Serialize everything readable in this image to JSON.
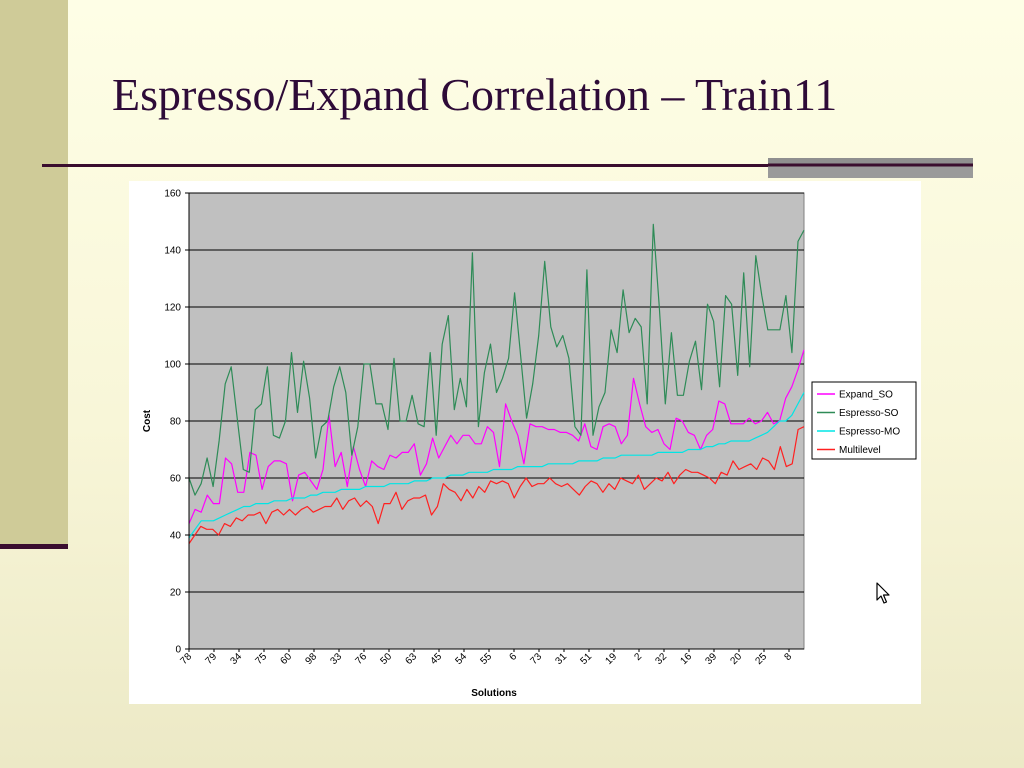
{
  "slide": {
    "title": "Espresso/Expand Correlation – Train11"
  },
  "colors": {
    "title": "#2e0b38",
    "band": "#cfcb98",
    "rule": "#3a0d2e",
    "plot_background": "#c0c0c0",
    "series": {
      "Expand_SO": "#ff00ff",
      "Espresso-SO": "#2e8b57",
      "Espresso-MO": "#00e5e5",
      "Multilevel": "#ff2020"
    }
  },
  "icons": {
    "cursor": "arrow-cursor-icon"
  },
  "chart_data": {
    "type": "line",
    "title": "",
    "xlabel": "Solutions",
    "ylabel": "Cost",
    "ylim": [
      0,
      160
    ],
    "yticks": [
      0,
      20,
      40,
      60,
      80,
      100,
      120,
      140,
      160
    ],
    "grid": true,
    "legend_position": "right",
    "x_tick_labels": [
      "78",
      "79",
      "34",
      "75",
      "60",
      "98",
      "33",
      "76",
      "50",
      "63",
      "45",
      "54",
      "55",
      "6",
      "73",
      "31",
      "51",
      "19",
      "2",
      "32",
      "16",
      "39",
      "20",
      "25",
      "8"
    ],
    "x_tick_every": 5,
    "n_points": 124,
    "series": [
      {
        "name": "Expand_SO",
        "color": "#ff00ff",
        "values": [
          44,
          49,
          48,
          54,
          51,
          51,
          67,
          65,
          55,
          55,
          69,
          68,
          56,
          64,
          66,
          66,
          65,
          52,
          61,
          62,
          59,
          56,
          63,
          82,
          64,
          69,
          57,
          71,
          63,
          57,
          66,
          64,
          63,
          68,
          67,
          69,
          69,
          72,
          61,
          65,
          74,
          67,
          71,
          75,
          72,
          75,
          75,
          72,
          72,
          78,
          76,
          64,
          86,
          80,
          75,
          65,
          79,
          78,
          78,
          77,
          77,
          76,
          76,
          75,
          73,
          79,
          71,
          70,
          78,
          79,
          78,
          72,
          75,
          95,
          86,
          78,
          76,
          77,
          72,
          70,
          81,
          80,
          76,
          75,
          70,
          75,
          77,
          87,
          86,
          79,
          79,
          79,
          81,
          79,
          80,
          83,
          79,
          80,
          88,
          92,
          98,
          105
        ]
      },
      {
        "name": "Espresso-SO",
        "color": "#2e8b57",
        "values": [
          60,
          54,
          58,
          67,
          57,
          73,
          93,
          99,
          81,
          63,
          62,
          84,
          86,
          99,
          75,
          74,
          80,
          104,
          83,
          101,
          88,
          67,
          78,
          80,
          92,
          99,
          90,
          68,
          78,
          100,
          100,
          86,
          86,
          77,
          102,
          80,
          80,
          89,
          79,
          78,
          104,
          75,
          107,
          117,
          84,
          95,
          85,
          139,
          78,
          97,
          107,
          90,
          95,
          102,
          125,
          103,
          81,
          93,
          110,
          136,
          113,
          106,
          110,
          102,
          78,
          75,
          133,
          75,
          85,
          90,
          112,
          104,
          126,
          111,
          116,
          113,
          86,
          149,
          120,
          86,
          111,
          89,
          89,
          101,
          108,
          91,
          121,
          115,
          92,
          124,
          121,
          96,
          132,
          99,
          138,
          124,
          112,
          112,
          112,
          124,
          104,
          143,
          147
        ]
      },
      {
        "name": "Espresso-MO",
        "color": "#00e5e5",
        "values": [
          39,
          42,
          45,
          45,
          45,
          46,
          47,
          48,
          49,
          50,
          50,
          51,
          51,
          51,
          52,
          52,
          52,
          53,
          53,
          53,
          54,
          54,
          55,
          55,
          55,
          56,
          56,
          56,
          56,
          57,
          57,
          57,
          57,
          58,
          58,
          58,
          58,
          59,
          59,
          59,
          60,
          60,
          60,
          61,
          61,
          61,
          62,
          62,
          62,
          62,
          63,
          63,
          63,
          63,
          64,
          64,
          64,
          64,
          64,
          65,
          65,
          65,
          65,
          65,
          66,
          66,
          66,
          66,
          67,
          67,
          67,
          68,
          68,
          68,
          68,
          68,
          68,
          69,
          69,
          69,
          69,
          69,
          70,
          70,
          70,
          71,
          71,
          72,
          72,
          73,
          73,
          73,
          73,
          74,
          75,
          76,
          78,
          80,
          80,
          82,
          86,
          90
        ]
      },
      {
        "name": "Multilevel",
        "color": "#ff2020",
        "values": [
          37,
          40,
          43,
          42,
          42,
          40,
          44,
          43,
          46,
          45,
          47,
          47,
          48,
          44,
          48,
          49,
          47,
          49,
          47,
          49,
          50,
          48,
          49,
          50,
          50,
          53,
          49,
          52,
          53,
          50,
          52,
          50,
          44,
          51,
          51,
          55,
          49,
          52,
          53,
          53,
          54,
          47,
          50,
          58,
          56,
          55,
          52,
          56,
          53,
          57,
          55,
          59,
          58,
          59,
          58,
          53,
          57,
          60,
          57,
          58,
          58,
          60,
          58,
          57,
          58,
          56,
          54,
          57,
          59,
          58,
          55,
          58,
          56,
          60,
          59,
          58,
          61,
          56,
          58,
          60,
          59,
          62,
          58,
          61,
          63,
          62,
          62,
          61,
          60,
          58,
          62,
          61,
          66,
          63,
          64,
          65,
          63,
          67,
          66,
          63,
          71,
          64,
          65,
          77,
          78
        ]
      }
    ]
  }
}
